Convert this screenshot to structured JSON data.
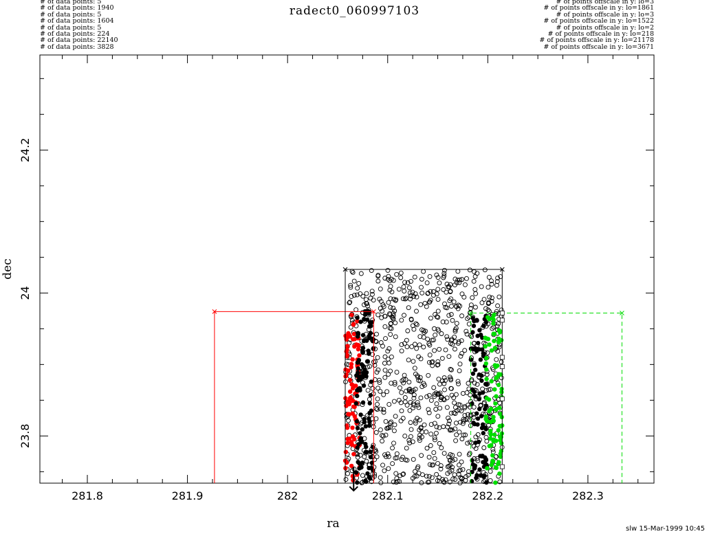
{
  "chart_data": {
    "type": "scatter",
    "title": "radect0_060997103",
    "xlabel": "ra",
    "ylabel": "dec",
    "xlim": [
      281.7526,
      282.366
    ],
    "ylim": [
      23.734,
      24.333
    ],
    "xticks": [
      281.8,
      281.9,
      282,
      282.1,
      282.2,
      282.3
    ],
    "xtick_labels": [
      "281.8",
      "281.9",
      "282",
      "282.1",
      "282.2",
      "282.3"
    ],
    "yticks": [
      23.8,
      24,
      24.2
    ],
    "ytick_labels": [
      "23.8",
      "24",
      "24.2"
    ],
    "grid": false,
    "header_left": [
      "# of data points: 5",
      "# of data points: 1940",
      "# of data points: 5",
      "# of data points: 1604",
      "# of data points: 5",
      "# of data points: 224",
      "# of data points: 22140",
      "# of data points: 3828"
    ],
    "header_right": [
      "# of points offscale in y: lo=3",
      "# of points offscale in y: lo=1861",
      "# of points offscale in y: lo=3",
      "# of points offscale in y: lo=1522",
      "# of points offscale in y: lo=2",
      "# of points offscale in y: lo=218",
      "# of points offscale in y: lo=21178",
      "# of points offscale in y: lo=3671"
    ],
    "outlines": [
      {
        "color": "#ff0000",
        "style": "solid",
        "x": [
          281.927,
          281.927,
          282.086,
          282.086
        ],
        "y": [
          23.734,
          23.974,
          23.974,
          23.734
        ]
      },
      {
        "color": "#000000",
        "style": "solid",
        "x": [
          282.0576,
          282.0576,
          282.2144,
          282.2144
        ],
        "y": [
          23.734,
          24.033,
          24.033,
          23.734
        ]
      },
      {
        "color": "#00dd00",
        "style": "dashed",
        "x": [
          282.183,
          282.183,
          282.334,
          282.334
        ],
        "y": [
          23.734,
          23.972,
          23.972,
          23.734
        ]
      }
    ],
    "point_groups": [
      {
        "color": "#000000",
        "marker": "open-circle",
        "xrange": [
          282.0576,
          282.2144
        ],
        "yrange": [
          23.734,
          24.033
        ]
      },
      {
        "color": "#ff0000",
        "marker": "filled-circle",
        "xrange": [
          282.0576,
          282.072
        ],
        "yrange": [
          23.734,
          23.97
        ]
      },
      {
        "color": "#000000",
        "marker": "filled-circle",
        "xrange": [
          282.0685,
          282.086
        ],
        "yrange": [
          23.734,
          23.975
        ]
      },
      {
        "color": "#000000",
        "marker": "filled-circle",
        "xrange": [
          282.183,
          282.199
        ],
        "yrange": [
          23.734,
          23.97
        ]
      },
      {
        "color": "#00dd00",
        "marker": "filled-circle",
        "xrange": [
          282.197,
          282.2144
        ],
        "yrange": [
          23.734,
          23.97
        ]
      }
    ],
    "bar_x": 282.066
  },
  "footer": "slw 15-Mar-1999 10:45"
}
